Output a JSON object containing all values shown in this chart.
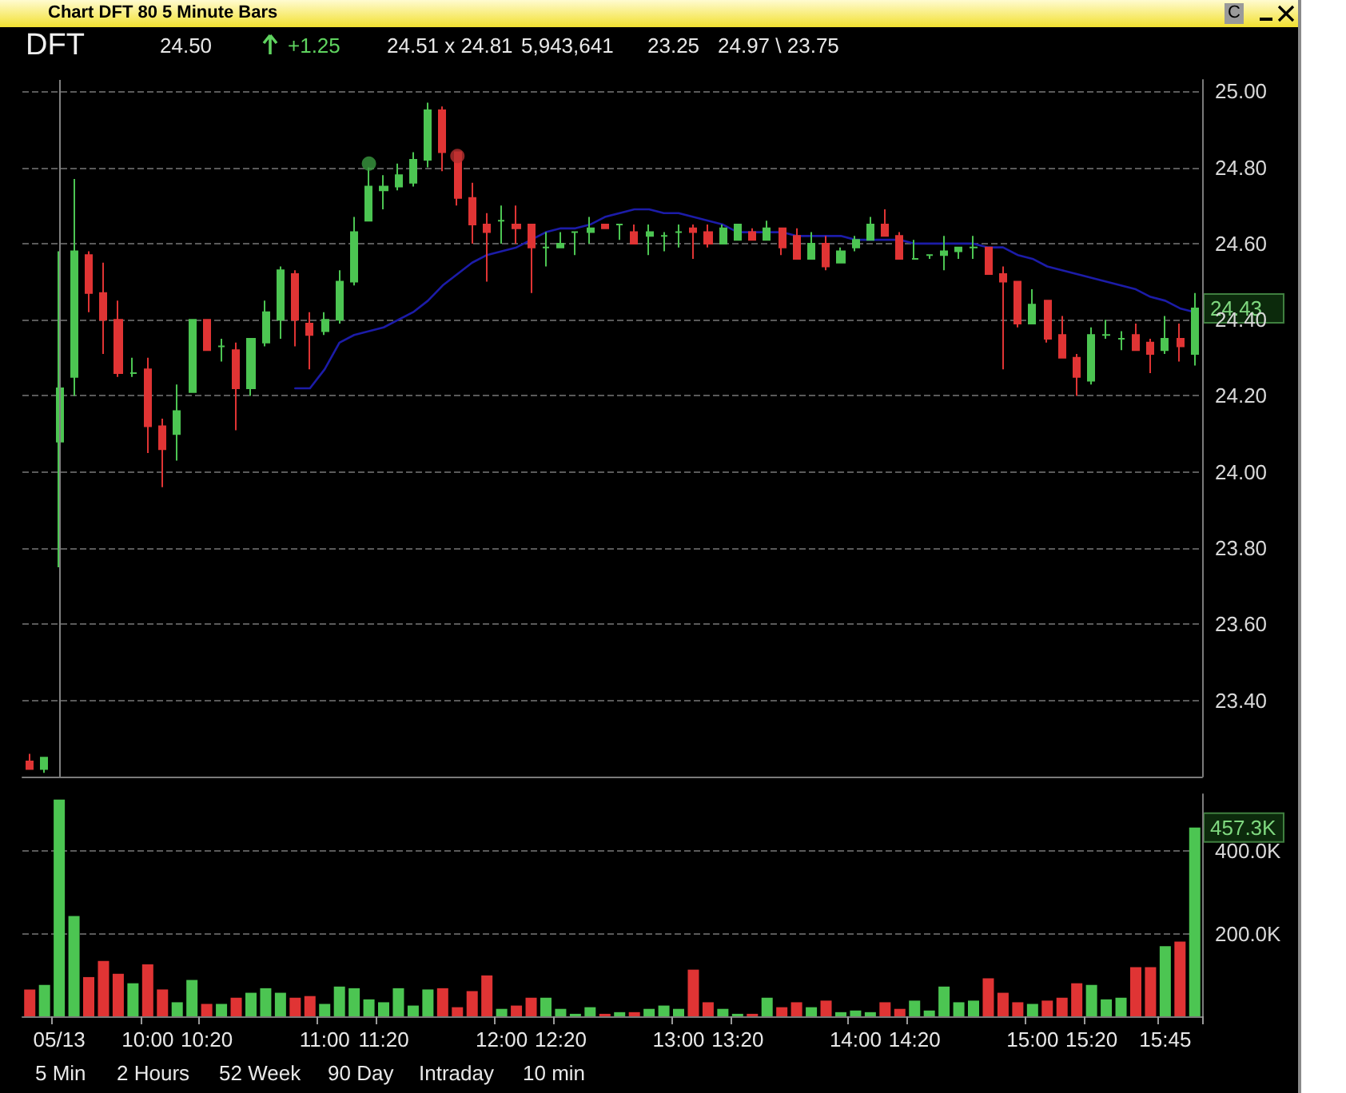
{
  "chart_data": [
    {
      "type": "candlestick",
      "title": "Chart DFT 80 5 Minute Bars",
      "subtitle": "DFT",
      "categories": [
        null,
        null,
        "05/13",
        null,
        null,
        null,
        null,
        null,
        "10:00",
        null,
        null,
        null,
        "10:20",
        null,
        null,
        null,
        null,
        null,
        null,
        null,
        "11:00",
        null,
        null,
        null,
        "11:20",
        null,
        null,
        null,
        null,
        null,
        null,
        null,
        "12:00",
        null,
        null,
        null,
        "12:20",
        null,
        null,
        null,
        null,
        null,
        null,
        null,
        "13:00",
        null,
        null,
        null,
        "13:20",
        null,
        null,
        null,
        null,
        null,
        null,
        null,
        "14:00",
        null,
        null,
        null,
        "14:20",
        null,
        null,
        null,
        null,
        null,
        null,
        null,
        "15:00",
        null,
        null,
        null,
        "15:20",
        null,
        null,
        null,
        null,
        "15:45",
        null,
        null
      ],
      "series": [
        {
          "type": "candlestick",
          "ohlc": [
            [
              23.24,
              23.26,
              23.22,
              23.22
            ],
            [
              23.22,
              23.25,
              23.21,
              23.25
            ],
            [
              24.08,
              24.58,
              23.75,
              24.22
            ],
            [
              24.25,
              24.77,
              24.2,
              24.58
            ],
            [
              24.57,
              24.58,
              24.42,
              24.47
            ],
            [
              24.47,
              24.55,
              24.31,
              24.4
            ],
            [
              24.4,
              24.45,
              24.25,
              24.26
            ],
            [
              24.26,
              24.3,
              24.25,
              24.26
            ],
            [
              24.27,
              24.3,
              24.05,
              24.12
            ],
            [
              24.12,
              24.14,
              23.96,
              24.06
            ],
            [
              24.1,
              24.23,
              24.03,
              24.16
            ],
            [
              24.21,
              24.4,
              24.21,
              24.4
            ],
            [
              24.4,
              24.4,
              24.32,
              24.32
            ],
            [
              24.33,
              24.35,
              24.29,
              24.33
            ],
            [
              24.32,
              24.34,
              24.11,
              24.22
            ],
            [
              24.22,
              24.35,
              24.2,
              24.35
            ],
            [
              24.34,
              24.45,
              24.33,
              24.42
            ],
            [
              24.4,
              24.54,
              24.35,
              24.53
            ],
            [
              24.52,
              24.53,
              24.33,
              24.4
            ],
            [
              24.39,
              24.42,
              24.27,
              24.36
            ],
            [
              24.37,
              24.42,
              24.36,
              24.4
            ],
            [
              24.4,
              24.53,
              24.39,
              24.5
            ],
            [
              24.5,
              24.67,
              24.49,
              24.63
            ],
            [
              24.66,
              24.8,
              24.66,
              24.75
            ],
            [
              24.74,
              24.78,
              24.69,
              24.75
            ],
            [
              24.75,
              24.81,
              24.74,
              24.78
            ],
            [
              24.76,
              24.84,
              24.75,
              24.82
            ],
            [
              24.82,
              24.97,
              24.8,
              24.95
            ],
            [
              24.95,
              24.96,
              24.79,
              24.84
            ],
            [
              24.84,
              24.84,
              24.7,
              24.72
            ],
            [
              24.72,
              24.76,
              24.6,
              24.65
            ],
            [
              24.65,
              24.68,
              24.5,
              24.63
            ],
            [
              24.66,
              24.7,
              24.6,
              24.66
            ],
            [
              24.65,
              24.7,
              24.6,
              24.64
            ],
            [
              24.65,
              24.65,
              24.47,
              24.59
            ],
            [
              24.59,
              24.63,
              24.54,
              24.59
            ],
            [
              24.59,
              24.63,
              24.59,
              24.6
            ],
            [
              24.63,
              24.63,
              24.57,
              24.63
            ],
            [
              24.63,
              24.67,
              24.6,
              24.64
            ],
            [
              24.65,
              24.65,
              24.64,
              24.64
            ],
            [
              24.65,
              24.65,
              24.61,
              24.65
            ],
            [
              24.63,
              24.65,
              24.6,
              24.6
            ],
            [
              24.62,
              24.65,
              24.57,
              24.63
            ],
            [
              24.62,
              24.63,
              24.58,
              24.62
            ],
            [
              24.63,
              24.65,
              24.59,
              24.63
            ],
            [
              24.64,
              24.65,
              24.56,
              24.63
            ],
            [
              24.63,
              24.65,
              24.59,
              24.6
            ],
            [
              24.6,
              24.65,
              24.6,
              24.64
            ],
            [
              24.61,
              24.65,
              24.61,
              24.65
            ],
            [
              24.63,
              24.64,
              24.61,
              24.61
            ],
            [
              24.61,
              24.66,
              24.61,
              24.64
            ],
            [
              24.64,
              24.64,
              24.57,
              24.59
            ],
            [
              24.62,
              24.64,
              24.56,
              24.56
            ],
            [
              24.56,
              24.63,
              24.56,
              24.6
            ],
            [
              24.6,
              24.62,
              24.53,
              24.54
            ],
            [
              24.55,
              24.59,
              24.55,
              24.58
            ],
            [
              24.59,
              24.62,
              24.58,
              24.61
            ],
            [
              24.61,
              24.67,
              24.61,
              24.65
            ],
            [
              24.65,
              24.69,
              24.62,
              24.62
            ],
            [
              24.62,
              24.63,
              24.56,
              24.56
            ],
            [
              24.56,
              24.61,
              24.56,
              24.56
            ],
            [
              24.57,
              24.57,
              24.56,
              24.57
            ],
            [
              24.57,
              24.62,
              24.53,
              24.58
            ],
            [
              24.58,
              24.59,
              24.56,
              24.59
            ],
            [
              24.59,
              24.62,
              24.56,
              24.59
            ],
            [
              24.59,
              24.59,
              24.52,
              24.52
            ],
            [
              24.52,
              24.54,
              24.27,
              24.5
            ],
            [
              24.5,
              24.5,
              24.38,
              24.39
            ],
            [
              24.39,
              24.48,
              24.39,
              24.44
            ],
            [
              24.45,
              24.45,
              24.34,
              24.35
            ],
            [
              24.36,
              24.41,
              24.3,
              24.3
            ],
            [
              24.3,
              24.31,
              24.2,
              24.25
            ],
            [
              24.24,
              24.38,
              24.23,
              24.36
            ],
            [
              24.36,
              24.4,
              24.35,
              24.36
            ],
            [
              24.35,
              24.37,
              24.32,
              24.35
            ],
            [
              24.36,
              24.39,
              24.32,
              24.32
            ],
            [
              24.34,
              24.35,
              24.26,
              24.31
            ],
            [
              24.32,
              24.41,
              24.31,
              24.35
            ],
            [
              24.35,
              24.39,
              24.29,
              24.33
            ],
            [
              24.31,
              24.47,
              24.28,
              24.43
            ]
          ],
          "colors": [
            "#e03434",
            "#4cc552",
            "#4cc552",
            "#4cc552",
            "#e03434",
            "#e03434",
            "#e03434",
            "#4cc552",
            "#e03434",
            "#e03434",
            "#4cc552",
            "#4cc552",
            "#e03434",
            "#4cc552",
            "#e03434",
            "#4cc552",
            "#4cc552",
            "#4cc552",
            "#e03434",
            "#e03434",
            "#4cc552",
            "#4cc552",
            "#4cc552",
            "#4cc552",
            "#4cc552",
            "#4cc552",
            "#4cc552",
            "#4cc552",
            "#e03434",
            "#e03434",
            "#e03434",
            "#e03434",
            "#4cc552",
            "#e03434",
            "#e03434",
            "#4cc552",
            "#4cc552",
            "#4cc552",
            "#4cc552",
            "#e03434",
            "#4cc552",
            "#e03434",
            "#4cc552",
            "#4cc552",
            "#4cc552",
            "#e03434",
            "#e03434",
            "#4cc552",
            "#4cc552",
            "#e03434",
            "#4cc552",
            "#e03434",
            "#e03434",
            "#4cc552",
            "#e03434",
            "#4cc552",
            "#4cc552",
            "#4cc552",
            "#e03434",
            "#e03434",
            "#4cc552",
            "#4cc552",
            "#4cc552",
            "#4cc552",
            "#4cc552",
            "#e03434",
            "#e03434",
            "#e03434",
            "#4cc552",
            "#e03434",
            "#e03434",
            "#e03434",
            "#4cc552",
            "#4cc552",
            "#4cc552",
            "#e03434",
            "#e03434",
            "#4cc552",
            "#e03434",
            "#4cc552"
          ]
        },
        {
          "type": "line",
          "color": "#1c1ca8",
          "marker": "none",
          "line_style": "solid",
          "values": [
            null,
            null,
            null,
            null,
            null,
            null,
            null,
            null,
            null,
            null,
            null,
            null,
            null,
            null,
            null,
            null,
            null,
            null,
            24.22,
            24.22,
            24.27,
            24.34,
            24.36,
            24.37,
            24.38,
            24.4,
            24.42,
            24.45,
            24.49,
            24.52,
            24.55,
            24.57,
            24.58,
            24.59,
            24.61,
            24.63,
            24.64,
            24.64,
            24.65,
            24.67,
            24.68,
            24.69,
            24.69,
            24.68,
            24.68,
            24.67,
            24.66,
            24.65,
            24.63,
            24.63,
            24.63,
            24.63,
            24.62,
            24.62,
            24.62,
            24.62,
            24.61,
            24.61,
            24.61,
            24.61,
            24.6,
            24.6,
            24.6,
            24.6,
            24.6,
            24.59,
            24.59,
            24.57,
            24.56,
            24.54,
            24.53,
            24.52,
            24.51,
            24.5,
            24.49,
            24.48,
            24.46,
            24.45,
            24.43,
            24.42
          ]
        },
        {
          "type": "scatter",
          "marker": "circle",
          "values": [
            null,
            null,
            null,
            null,
            null,
            null,
            null,
            null,
            null,
            null,
            null,
            null,
            null,
            null,
            null,
            null,
            null,
            null,
            null,
            null,
            null,
            null,
            null,
            24.81,
            null,
            null,
            null,
            null,
            null,
            24.83,
            null,
            null,
            null,
            null,
            null,
            null,
            null,
            null,
            null,
            null,
            null,
            null,
            null,
            null,
            null,
            null,
            null,
            null,
            null,
            null,
            null,
            null,
            null,
            null,
            null,
            null,
            null,
            null,
            null,
            null,
            null,
            null,
            null,
            null,
            null,
            null,
            null,
            null,
            null,
            null,
            null,
            null,
            null,
            null,
            null,
            null,
            null,
            null,
            null,
            null
          ],
          "colors": [
            null,
            null,
            null,
            null,
            null,
            null,
            null,
            null,
            null,
            null,
            null,
            null,
            null,
            null,
            null,
            null,
            null,
            null,
            null,
            null,
            null,
            null,
            null,
            "#3a9a40",
            null,
            null,
            null,
            null,
            null,
            "#b83030",
            null,
            null,
            null,
            null,
            null,
            null,
            null,
            null,
            null,
            null,
            null,
            null,
            null,
            null,
            null,
            null,
            null,
            null,
            null,
            null,
            null,
            null,
            null,
            null,
            null,
            null,
            null,
            null,
            null,
            null,
            null,
            null,
            null,
            null,
            null,
            null,
            null,
            null,
            null,
            null,
            null,
            null,
            null,
            null,
            null,
            null,
            null,
            null,
            null,
            null
          ]
        }
      ],
      "ylim": [
        23.2,
        25.03
      ],
      "yticks": [
        {
          "value": 23.2,
          "label": null
        },
        {
          "value": 23.4,
          "label": "23.40"
        },
        {
          "value": 23.6,
          "label": "23.60"
        },
        {
          "value": 23.8,
          "label": "23.80"
        },
        {
          "value": 24,
          "label": "24.00"
        },
        {
          "value": 24.2,
          "label": "24.20"
        },
        {
          "value": 24.4,
          "label": "24.40"
        },
        {
          "value": 24.6,
          "label": "24.60"
        },
        {
          "value": 24.8,
          "label": "24.80"
        },
        {
          "value": 25,
          "label": "25.00"
        }
      ],
      "grid": "y",
      "tick_labels": "y",
      "ref_lines": [
        {
          "axis": "x",
          "value": "05/13",
          "color": "#808080"
        }
      ],
      "annotations": [
        "C",
        "24.50",
        "+1.25",
        "24.51 x 24.81",
        "5,943,641",
        "23.25",
        "24.97 \\ 23.75",
        "24.43"
      ]
    },
    {
      "type": "bar",
      "categories": [
        null,
        null,
        "05/13",
        null,
        null,
        null,
        null,
        null,
        "10:00",
        null,
        null,
        null,
        "10:20",
        null,
        null,
        null,
        null,
        null,
        null,
        null,
        "11:00",
        null,
        null,
        null,
        "11:20",
        null,
        null,
        null,
        null,
        null,
        null,
        null,
        "12:00",
        null,
        null,
        null,
        "12:20",
        null,
        null,
        null,
        null,
        null,
        null,
        null,
        "13:00",
        null,
        null,
        null,
        "13:20",
        null,
        null,
        null,
        null,
        null,
        null,
        null,
        "14:00",
        null,
        null,
        null,
        "14:20",
        null,
        null,
        null,
        null,
        null,
        null,
        null,
        "15:00",
        null,
        null,
        null,
        "15:20",
        null,
        null,
        null,
        null,
        "15:45",
        null,
        null
      ],
      "values": [
        65000,
        76000,
        525000,
        243000,
        95000,
        134000,
        103000,
        80000,
        126000,
        65000,
        34000,
        88000,
        30000,
        30000,
        45000,
        57000,
        68000,
        57000,
        45000,
        49000,
        30000,
        72000,
        68000,
        41000,
        34000,
        68000,
        26000,
        65000,
        68000,
        22000,
        61000,
        99000,
        18000,
        26000,
        45000,
        45000,
        18000,
        6000,
        22000,
        6000,
        10000,
        10000,
        18000,
        26000,
        18000,
        113000,
        34000,
        18000,
        6000,
        6000,
        45000,
        22000,
        34000,
        22000,
        38000,
        10000,
        14000,
        10000,
        34000,
        18000,
        38000,
        14000,
        72000,
        34000,
        38000,
        92000,
        57000,
        34000,
        30000,
        38000,
        45000,
        80000,
        76000,
        41000,
        45000,
        119000,
        119000,
        170000,
        181000,
        457300
      ],
      "colors": [
        "#e03434",
        "#4cc552",
        "#4cc552",
        "#4cc552",
        "#e03434",
        "#e03434",
        "#e03434",
        "#4cc552",
        "#e03434",
        "#e03434",
        "#4cc552",
        "#4cc552",
        "#e03434",
        "#4cc552",
        "#e03434",
        "#4cc552",
        "#4cc552",
        "#4cc552",
        "#e03434",
        "#e03434",
        "#4cc552",
        "#4cc552",
        "#4cc552",
        "#4cc552",
        "#4cc552",
        "#4cc552",
        "#4cc552",
        "#4cc552",
        "#e03434",
        "#e03434",
        "#e03434",
        "#e03434",
        "#4cc552",
        "#e03434",
        "#e03434",
        "#4cc552",
        "#4cc552",
        "#4cc552",
        "#4cc552",
        "#e03434",
        "#4cc552",
        "#e03434",
        "#4cc552",
        "#4cc552",
        "#4cc552",
        "#e03434",
        "#e03434",
        "#4cc552",
        "#4cc552",
        "#e03434",
        "#4cc552",
        "#e03434",
        "#e03434",
        "#4cc552",
        "#e03434",
        "#4cc552",
        "#4cc552",
        "#4cc552",
        "#e03434",
        "#e03434",
        "#4cc552",
        "#4cc552",
        "#4cc552",
        "#4cc552",
        "#4cc552",
        "#e03434",
        "#e03434",
        "#e03434",
        "#4cc552",
        "#e03434",
        "#e03434",
        "#e03434",
        "#4cc552",
        "#4cc552",
        "#4cc552",
        "#e03434",
        "#e03434",
        "#4cc552",
        "#e03434",
        "#4cc552"
      ],
      "ylim": [
        0,
        538000
      ],
      "yticks": [
        {
          "value": 200000,
          "label": "200.0K"
        },
        {
          "value": 400000,
          "label": "400.0K"
        }
      ],
      "grid": "y",
      "annotations": [
        "5 Min",
        "2 Hours",
        "52 Week",
        "90 Day",
        "Intraday",
        "10 min",
        "457.3K"
      ]
    }
  ]
}
